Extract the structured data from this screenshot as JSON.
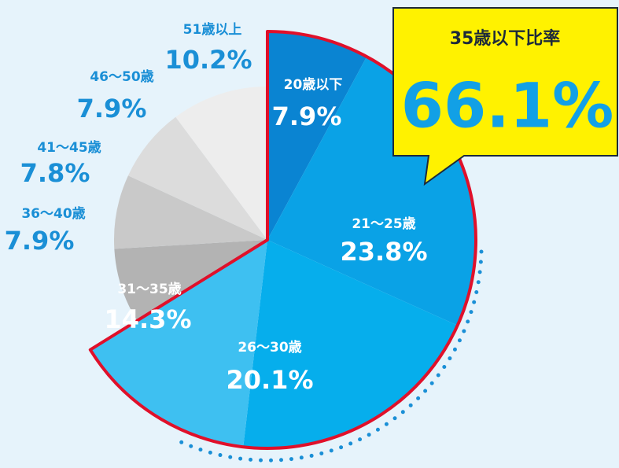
{
  "chart_data": {
    "type": "pie",
    "categories": [
      "20歳以下",
      "21〜25歳",
      "26〜30歳",
      "31〜35歳",
      "36〜40歳",
      "41〜45歳",
      "46〜50歳",
      "51歳以上"
    ],
    "values": [
      7.9,
      23.8,
      20.1,
      14.3,
      7.9,
      7.8,
      7.9,
      10.2
    ],
    "value_labels": [
      "7.9%",
      "23.8%",
      "20.1%",
      "14.3%",
      "7.9%",
      "7.8%",
      "7.9%",
      "10.2%"
    ],
    "colors": [
      "#0a84d2",
      "#0aa2e6",
      "#06aeec",
      "#3ec0f1",
      "#b3b3b3",
      "#c9c9c9",
      "#dcdcdc",
      "#ededed"
    ],
    "highlight": {
      "label": "35歳以下比率",
      "value": 66.1,
      "value_label": "66.1%"
    }
  }
}
